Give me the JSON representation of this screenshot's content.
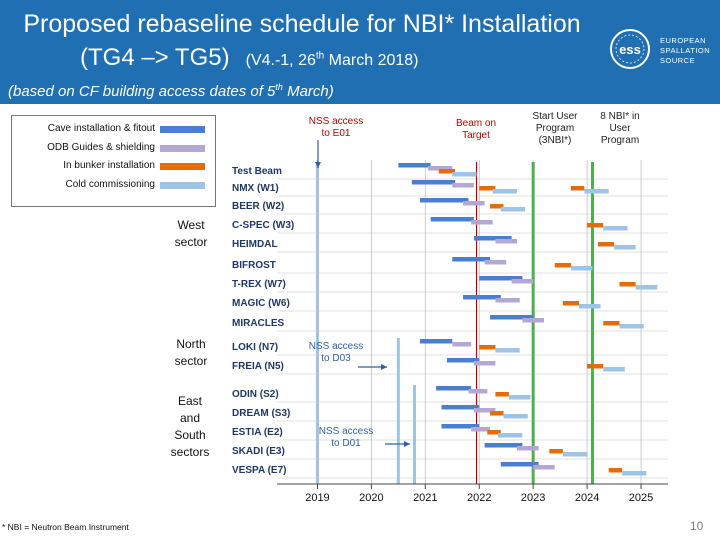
{
  "header": {
    "title_line1": "Proposed rebaseline schedule for NBI* Installation",
    "title_line2_main": "(TG4 –> TG5)",
    "title_version": "(V4.-1, 26",
    "title_version_sup": "th",
    "title_version_end": " March 2018)",
    "subtitle_main": "(based on CF building access dates of 5",
    "subtitle_sup": "th",
    "subtitle_end": " March)",
    "logo_text": [
      "EUROPEAN",
      "SPALLATION",
      "SOURCE"
    ],
    "logo_mark": "ess"
  },
  "legend": {
    "items": [
      {
        "label": "Cave installation & fitout",
        "color": "#4a7fd0"
      },
      {
        "label": "ODB Guides & shielding",
        "color": "#b4a7d6"
      },
      {
        "label": "In bunker installation",
        "color": "#e46c0a"
      },
      {
        "label": "Cold commissioning",
        "color": "#9dc3e6"
      }
    ]
  },
  "sectors": {
    "west": [
      "West",
      "sector"
    ],
    "north": [
      "North",
      "sector"
    ],
    "east": [
      "East",
      "and",
      "South",
      "sectors"
    ]
  },
  "footnote": "* NBI = Neutron Beam Instrument",
  "page_number": "10",
  "chart_data": {
    "type": "gantt",
    "x_range": [
      2018.25,
      2025.5
    ],
    "x_ticks": [
      2019,
      2020,
      2021,
      2022,
      2023,
      2024,
      2025
    ],
    "x_tick_labels": [
      "2019",
      "2020",
      "2021",
      "2022",
      "2023",
      "2024",
      "2025"
    ],
    "instruments": [
      "Test Beam",
      "NMX (W1)",
      "BEER (W2)",
      "C-SPEC (W3)",
      "HEIMDAL",
      "BIFROST",
      "T-REX (W7)",
      "MAGIC (W6)",
      "MIRACLES",
      "LOKI (N7)",
      "FREIA (N5)",
      "ODIN (S2)",
      "DREAM (S3)",
      "ESTIA (E2)",
      "SKADI (E3)",
      "VESPA (E7)"
    ],
    "tasks": [
      {
        "row": 0,
        "phase": "cave",
        "start": 2020.5,
        "end": 2021.1
      },
      {
        "row": 0,
        "phase": "odb",
        "start": 2021.05,
        "end": 2021.5
      },
      {
        "row": 0,
        "phase": "bunker",
        "start": 2021.25,
        "end": 2021.55
      },
      {
        "row": 0,
        "phase": "cold",
        "start": 2021.5,
        "end": 2021.95
      },
      {
        "row": 1,
        "phase": "cave",
        "start": 2020.75,
        "end": 2021.55
      },
      {
        "row": 1,
        "phase": "odb",
        "start": 2021.5,
        "end": 2021.9
      },
      {
        "row": 1,
        "phase": "bunker",
        "start": 2022.0,
        "end": 2022.3
      },
      {
        "row": 1,
        "phase": "cold",
        "start": 2022.25,
        "end": 2022.7
      },
      {
        "row": 1,
        "phase": "bunker",
        "start": 2023.7,
        "end": 2023.95
      },
      {
        "row": 1,
        "phase": "cold",
        "start": 2023.95,
        "end": 2024.4
      },
      {
        "row": 2,
        "phase": "cave",
        "start": 2020.9,
        "end": 2021.8
      },
      {
        "row": 2,
        "phase": "odb",
        "start": 2021.7,
        "end": 2022.1
      },
      {
        "row": 2,
        "phase": "bunker",
        "start": 2022.2,
        "end": 2022.45
      },
      {
        "row": 2,
        "phase": "cold",
        "start": 2022.4,
        "end": 2022.85
      },
      {
        "row": 3,
        "phase": "cave",
        "start": 2021.1,
        "end": 2021.9
      },
      {
        "row": 3,
        "phase": "odb",
        "start": 2021.85,
        "end": 2022.25
      },
      {
        "row": 3,
        "phase": "bunker",
        "start": 2024.0,
        "end": 2024.3
      },
      {
        "row": 3,
        "phase": "cold",
        "start": 2024.3,
        "end": 2024.75
      },
      {
        "row": 4,
        "phase": "cave",
        "start": 2021.9,
        "end": 2022.6
      },
      {
        "row": 4,
        "phase": "odb",
        "start": 2022.3,
        "end": 2022.7
      },
      {
        "row": 4,
        "phase": "bunker",
        "start": 2024.2,
        "end": 2024.5
      },
      {
        "row": 4,
        "phase": "cold",
        "start": 2024.5,
        "end": 2024.9
      },
      {
        "row": 5,
        "phase": "cave",
        "start": 2021.5,
        "end": 2022.2
      },
      {
        "row": 5,
        "phase": "odb",
        "start": 2022.1,
        "end": 2022.5
      },
      {
        "row": 5,
        "phase": "bunker",
        "start": 2023.4,
        "end": 2023.7
      },
      {
        "row": 5,
        "phase": "cold",
        "start": 2023.7,
        "end": 2024.1
      },
      {
        "row": 6,
        "phase": "cave",
        "start": 2022.0,
        "end": 2022.8
      },
      {
        "row": 6,
        "phase": "odb",
        "start": 2022.6,
        "end": 2023.0
      },
      {
        "row": 6,
        "phase": "bunker",
        "start": 2024.6,
        "end": 2024.9
      },
      {
        "row": 6,
        "phase": "cold",
        "start": 2024.9,
        "end": 2025.3
      },
      {
        "row": 7,
        "phase": "cave",
        "start": 2021.7,
        "end": 2022.4
      },
      {
        "row": 7,
        "phase": "odb",
        "start": 2022.3,
        "end": 2022.75
      },
      {
        "row": 7,
        "phase": "bunker",
        "start": 2023.55,
        "end": 2023.85
      },
      {
        "row": 7,
        "phase": "cold",
        "start": 2023.85,
        "end": 2024.25
      },
      {
        "row": 8,
        "phase": "cave",
        "start": 2022.2,
        "end": 2023.0
      },
      {
        "row": 8,
        "phase": "odb",
        "start": 2022.8,
        "end": 2023.2
      },
      {
        "row": 8,
        "phase": "bunker",
        "start": 2024.3,
        "end": 2024.6
      },
      {
        "row": 8,
        "phase": "cold",
        "start": 2024.6,
        "end": 2025.05
      },
      {
        "row": 9,
        "phase": "cave",
        "start": 2020.9,
        "end": 2021.5
      },
      {
        "row": 9,
        "phase": "odb",
        "start": 2021.5,
        "end": 2021.85
      },
      {
        "row": 9,
        "phase": "bunker",
        "start": 2022.0,
        "end": 2022.3
      },
      {
        "row": 9,
        "phase": "cold",
        "start": 2022.3,
        "end": 2022.75
      },
      {
        "row": 10,
        "phase": "cave",
        "start": 2021.4,
        "end": 2022.0
      },
      {
        "row": 10,
        "phase": "odb",
        "start": 2021.9,
        "end": 2022.3
      },
      {
        "row": 10,
        "phase": "bunker",
        "start": 2024.0,
        "end": 2024.3
      },
      {
        "row": 10,
        "phase": "cold",
        "start": 2024.3,
        "end": 2024.7
      },
      {
        "row": 11,
        "phase": "cave",
        "start": 2021.2,
        "end": 2021.85
      },
      {
        "row": 11,
        "phase": "odb",
        "start": 2021.8,
        "end": 2022.15
      },
      {
        "row": 11,
        "phase": "bunker",
        "start": 2022.3,
        "end": 2022.55
      },
      {
        "row": 11,
        "phase": "cold",
        "start": 2022.55,
        "end": 2022.95
      },
      {
        "row": 12,
        "phase": "cave",
        "start": 2021.3,
        "end": 2022.0
      },
      {
        "row": 12,
        "phase": "odb",
        "start": 2021.9,
        "end": 2022.3
      },
      {
        "row": 12,
        "phase": "bunker",
        "start": 2022.2,
        "end": 2022.45
      },
      {
        "row": 12,
        "phase": "cold",
        "start": 2022.45,
        "end": 2022.9
      },
      {
        "row": 13,
        "phase": "cave",
        "start": 2021.3,
        "end": 2022.0
      },
      {
        "row": 13,
        "phase": "odb",
        "start": 2021.85,
        "end": 2022.2
      },
      {
        "row": 13,
        "phase": "bunker",
        "start": 2022.15,
        "end": 2022.4
      },
      {
        "row": 13,
        "phase": "cold",
        "start": 2022.35,
        "end": 2022.8
      },
      {
        "row": 14,
        "phase": "cave",
        "start": 2022.1,
        "end": 2022.8
      },
      {
        "row": 14,
        "phase": "odb",
        "start": 2022.7,
        "end": 2023.1
      },
      {
        "row": 14,
        "phase": "bunker",
        "start": 2023.3,
        "end": 2023.55
      },
      {
        "row": 14,
        "phase": "cold",
        "start": 2023.55,
        "end": 2024.0
      },
      {
        "row": 15,
        "phase": "cave",
        "start": 2022.4,
        "end": 2023.1
      },
      {
        "row": 15,
        "phase": "odb",
        "start": 2023.0,
        "end": 2023.4
      },
      {
        "row": 15,
        "phase": "bunker",
        "start": 2024.4,
        "end": 2024.65
      },
      {
        "row": 15,
        "phase": "cold",
        "start": 2024.65,
        "end": 2025.1
      }
    ],
    "milestones": [
      {
        "label": "NSS access to E01",
        "x": 2019.0,
        "rows": [
          0,
          15
        ],
        "color": "#9dc3e6"
      },
      {
        "label": "NSS access to D03",
        "x": 2020.5,
        "rows": [
          9,
          15
        ],
        "color": "#9dc3e6"
      },
      {
        "label": "NSS access to D01",
        "x": 2020.8,
        "rows": [
          11,
          15
        ],
        "color": "#9dc3e6"
      },
      {
        "label": "Beam on Target",
        "x": 2021.95,
        "rows": [
          0,
          15
        ],
        "color": "#c00000"
      },
      {
        "label": "Start User Program (3NBI*)",
        "x": 2023.0,
        "rows": [
          0,
          15
        ],
        "color": "#4caf50"
      },
      {
        "label": "8 NBI* in User Program",
        "x": 2024.1,
        "rows": [
          0,
          15
        ],
        "color": "#4caf50"
      }
    ]
  }
}
